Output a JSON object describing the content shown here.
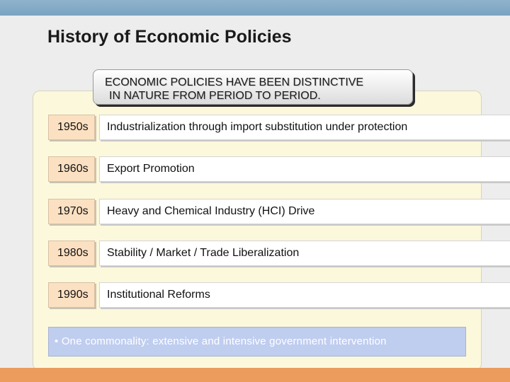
{
  "title": "History of Economic Policies",
  "banner": {
    "line1": "ECONOMIC POLICIES HAVE BEEN DISTINCTIVE",
    "line2": "IN NATURE FROM PERIOD TO PERIOD."
  },
  "rows": [
    {
      "decade": "1950s",
      "policy": "Industrialization through import substitution under protection"
    },
    {
      "decade": "1960s",
      "policy": "Export Promotion"
    },
    {
      "decade": "1970s",
      "policy": "Heavy and Chemical Industry (HCI) Drive"
    },
    {
      "decade": "1980s",
      "policy": "Stability / Market / Trade Liberalization"
    },
    {
      "decade": "1990s",
      "policy": "Institutional Reforms"
    }
  ],
  "commonality": "• One commonality: extensive and intensive government intervention",
  "colors": {
    "top_bar": "#7aa3c0",
    "panel": "#fcf8dc",
    "decade_box": "#fbe0c2",
    "commonality_box": "#bfcdef",
    "bottom_strip": "#ec9c5c"
  }
}
